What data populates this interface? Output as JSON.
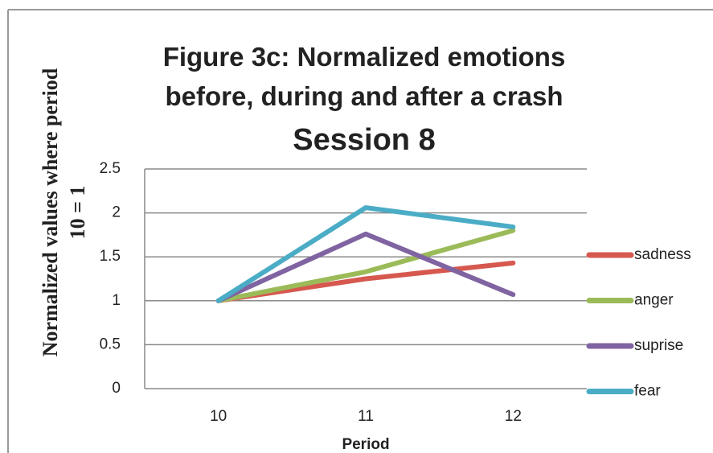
{
  "chart_data": {
    "type": "line",
    "title": "Figure 3c: Normalized emotions before, during and after a crash",
    "subtitle": "Session 8",
    "y_label": "Normalized values where period 10 = 1",
    "x_label": "Period",
    "categories": [
      "10",
      "11",
      "12"
    ],
    "series": [
      {
        "name": "sadness",
        "color": "#d6584f",
        "values": [
          1,
          1.25,
          1.43
        ]
      },
      {
        "name": "anger",
        "color": "#9bbb59",
        "values": [
          1,
          1.33,
          1.8
        ]
      },
      {
        "name": "suprise",
        "color": "#8064a2",
        "values": [
          1,
          1.76,
          1.07
        ]
      },
      {
        "name": "fear",
        "color": "#4bacc6",
        "values": [
          1,
          2.06,
          1.84
        ]
      }
    ],
    "ylim": [
      0,
      2.5
    ],
    "yticks": [
      0,
      0.5,
      1,
      1.5,
      2,
      2.5
    ],
    "grid": true,
    "legend": "right"
  }
}
